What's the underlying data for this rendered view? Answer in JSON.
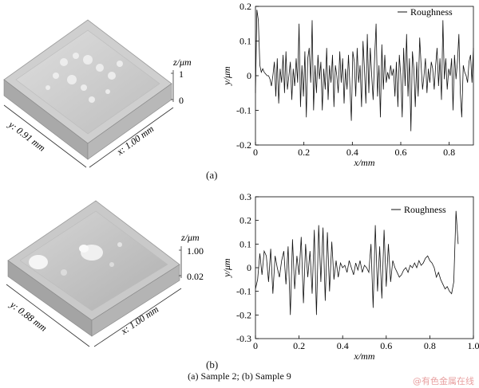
{
  "caption": "(a) Sample 2; (b) Sample 9",
  "watermark": "@有色金属在线",
  "panels": [
    {
      "label": "(a)",
      "surface": {
        "z_axis_label": "z/μm",
        "z_ticks": [
          "1",
          "0"
        ],
        "y_dim_label": "y: 0.91 mm",
        "x_dim_label": "x: 1.00 mm"
      }
    },
    {
      "label": "(b)",
      "surface": {
        "z_axis_label": "z/μm",
        "z_ticks": [
          "1.00",
          "0.02"
        ],
        "y_dim_label": "y: 0.88 mm",
        "x_dim_label": "x: 1.00 mm"
      }
    }
  ],
  "chart_data": [
    {
      "type": "line",
      "xlabel": "x/mm",
      "ylabel": "y/μm",
      "xlim": [
        0,
        0.9
      ],
      "ylim": [
        -0.2,
        0.2
      ],
      "xticks": [
        "0",
        "0.2",
        "0.4",
        "0.6",
        "0.8"
      ],
      "xtick_values": [
        0,
        0.2,
        0.4,
        0.6,
        0.8
      ],
      "yticks": [
        "0.2",
        "0.1",
        "0",
        "-0.1",
        "-0.2"
      ],
      "ytick_values": [
        0.2,
        0.1,
        0,
        -0.1,
        -0.2
      ],
      "series": [
        {
          "name": "Roughness",
          "x": [
            0,
            0.006,
            0.012,
            0.018,
            0.024,
            0.03,
            0.036,
            0.042,
            0.048,
            0.054,
            0.06,
            0.066,
            0.072,
            0.078,
            0.084,
            0.09,
            0.096,
            0.102,
            0.108,
            0.114,
            0.12,
            0.126,
            0.132,
            0.138,
            0.144,
            0.15,
            0.156,
            0.162,
            0.168,
            0.174,
            0.18,
            0.186,
            0.192,
            0.198,
            0.204,
            0.21,
            0.216,
            0.222,
            0.228,
            0.234,
            0.24,
            0.246,
            0.252,
            0.258,
            0.264,
            0.27,
            0.276,
            0.282,
            0.288,
            0.294,
            0.3,
            0.306,
            0.312,
            0.318,
            0.324,
            0.33,
            0.336,
            0.342,
            0.348,
            0.354,
            0.36,
            0.366,
            0.372,
            0.378,
            0.384,
            0.39,
            0.396,
            0.402,
            0.408,
            0.414,
            0.42,
            0.426,
            0.432,
            0.438,
            0.444,
            0.45,
            0.456,
            0.462,
            0.468,
            0.474,
            0.48,
            0.486,
            0.492,
            0.498,
            0.504,
            0.51,
            0.516,
            0.522,
            0.528,
            0.534,
            0.54,
            0.546,
            0.552,
            0.558,
            0.564,
            0.57,
            0.576,
            0.582,
            0.588,
            0.594,
            0.6,
            0.606,
            0.612,
            0.618,
            0.624,
            0.63,
            0.636,
            0.642,
            0.648,
            0.654,
            0.66,
            0.666,
            0.672,
            0.678,
            0.684,
            0.69,
            0.696,
            0.702,
            0.708,
            0.714,
            0.72,
            0.726,
            0.732,
            0.738,
            0.744,
            0.75,
            0.756,
            0.762,
            0.768,
            0.774,
            0.78,
            0.786,
            0.792,
            0.798,
            0.804,
            0.81,
            0.816,
            0.822,
            0.828,
            0.834,
            0.84,
            0.846,
            0.852,
            0.858,
            0.864,
            0.87,
            0.876,
            0.882,
            0.888,
            0.894,
            0.9
          ],
          "y": [
            -0.05,
            0.19,
            0.16,
            0.03,
            0.01,
            0.02,
            0.01,
            0.005,
            0.0,
            0.0,
            -0.01,
            -0.03,
            0.0,
            0.04,
            -0.06,
            0.05,
            -0.08,
            0.02,
            -0.02,
            0.06,
            -0.05,
            0.07,
            -0.04,
            0.0,
            0.04,
            -0.07,
            0.02,
            -0.03,
            0.05,
            -0.02,
            0.15,
            -0.09,
            0.03,
            -0.06,
            0.07,
            -0.12,
            0.05,
            0.08,
            -0.02,
            0.16,
            -0.1,
            0.03,
            -0.05,
            0.06,
            -0.01,
            0.04,
            -0.1,
            0.02,
            -0.04,
            0.08,
            -0.07,
            0.03,
            -0.02,
            0.06,
            -0.09,
            0.03,
            0.0,
            -0.05,
            0.07,
            -0.02,
            0.05,
            -0.08,
            0.02,
            -0.04,
            0.06,
            -0.03,
            -0.13,
            0.07,
            0.04,
            -0.06,
            0.08,
            -0.02,
            0.03,
            -0.09,
            0.1,
            0.02,
            -0.08,
            0.12,
            -0.05,
            0.08,
            0.0,
            -0.07,
            0.05,
            0.15,
            -0.06,
            0.03,
            -0.12,
            0.09,
            -0.04,
            0.06,
            -0.02,
            0.01,
            -0.01,
            0.03,
            0.0,
            0.02,
            -0.06,
            0.04,
            -0.09,
            0.06,
            0.0,
            -0.12,
            0.08,
            -0.03,
            0.12,
            -0.06,
            0.05,
            -0.16,
            0.07,
            0.02,
            -0.09,
            0.04,
            -0.06,
            0.11,
            0.03,
            -0.04,
            0.0,
            0.05,
            -0.05,
            0.02,
            -0.02,
            0.04,
            0.02,
            -0.04,
            0.03,
            0.08,
            -0.03,
            0.05,
            -0.07,
            0.16,
            -0.01,
            0.05,
            -0.04,
            0.02,
            0.0,
            0.05,
            -0.1,
            0.06,
            -0.01,
            0.04,
            0.12,
            -0.05,
            -0.12,
            0.03,
            0.01,
            0.0,
            -0.02,
            0.04,
            0.06,
            -0.02,
            0.08
          ]
        }
      ]
    },
    {
      "type": "line",
      "xlabel": "x/mm",
      "ylabel": "y/μm",
      "xlim": [
        0,
        1.0
      ],
      "ylim": [
        -0.3,
        0.3
      ],
      "xticks": [
        "0",
        "0.2",
        "0.4",
        "0.6",
        "0.8",
        "1.0"
      ],
      "xtick_values": [
        0,
        0.2,
        0.4,
        0.6,
        0.8,
        1.0
      ],
      "yticks": [
        "0.3",
        "0.2",
        "0.1",
        "0",
        "-0.1",
        "-0.2",
        "-0.3"
      ],
      "ytick_values": [
        0.3,
        0.2,
        0.1,
        0,
        -0.1,
        -0.2,
        -0.3
      ],
      "series": [
        {
          "name": "Roughness",
          "x": [
            0,
            0.01,
            0.02,
            0.03,
            0.04,
            0.05,
            0.06,
            0.07,
            0.08,
            0.09,
            0.1,
            0.11,
            0.12,
            0.13,
            0.14,
            0.15,
            0.16,
            0.17,
            0.18,
            0.19,
            0.2,
            0.21,
            0.22,
            0.23,
            0.24,
            0.25,
            0.26,
            0.27,
            0.28,
            0.29,
            0.3,
            0.31,
            0.32,
            0.33,
            0.34,
            0.35,
            0.36,
            0.37,
            0.38,
            0.39,
            0.4,
            0.41,
            0.42,
            0.43,
            0.44,
            0.45,
            0.46,
            0.47,
            0.48,
            0.49,
            0.5,
            0.51,
            0.52,
            0.53,
            0.54,
            0.55,
            0.56,
            0.57,
            0.58,
            0.59,
            0.6,
            0.61,
            0.62,
            0.63,
            0.64,
            0.65,
            0.66,
            0.67,
            0.68,
            0.69,
            0.7,
            0.71,
            0.72,
            0.73,
            0.74,
            0.75,
            0.76,
            0.77,
            0.78,
            0.79,
            0.8,
            0.81,
            0.82,
            0.83,
            0.84,
            0.85,
            0.86,
            0.87,
            0.88,
            0.89,
            0.9,
            0.91,
            0.92,
            0.93
          ],
          "y": [
            -0.09,
            -0.05,
            0.06,
            -0.03,
            0.07,
            0.05,
            -0.06,
            0.08,
            -0.11,
            0.05,
            0.0,
            -0.04,
            0.03,
            0.07,
            -0.07,
            0.09,
            -0.2,
            0.12,
            -0.09,
            0.05,
            -0.03,
            0.13,
            -0.15,
            0.1,
            -0.04,
            0.07,
            -0.11,
            0.16,
            -0.2,
            0.18,
            -0.06,
            0.17,
            -0.14,
            0.15,
            -0.1,
            0.11,
            -0.05,
            0.03,
            -0.04,
            0.02,
            0.0,
            0.01,
            -0.02,
            0.03,
            0.0,
            -0.03,
            0.02,
            -0.01,
            0.03,
            -0.02,
            0.01,
            0.0,
            -0.02,
            0.1,
            -0.17,
            0.18,
            -0.1,
            0.09,
            -0.13,
            0.16,
            -0.08,
            0.1,
            -0.06,
            0.03,
            0.0,
            -0.02,
            -0.04,
            -0.03,
            -0.01,
            0.0,
            -0.02,
            0.01,
            0.0,
            0.02,
            0.0,
            0.03,
            0.01,
            0.02,
            0.04,
            0.05,
            0.03,
            0.02,
            0.0,
            -0.04,
            -0.02,
            -0.05,
            -0.07,
            -0.09,
            -0.08,
            -0.1,
            -0.11,
            -0.06,
            0.24,
            0.1
          ]
        }
      ]
    }
  ]
}
